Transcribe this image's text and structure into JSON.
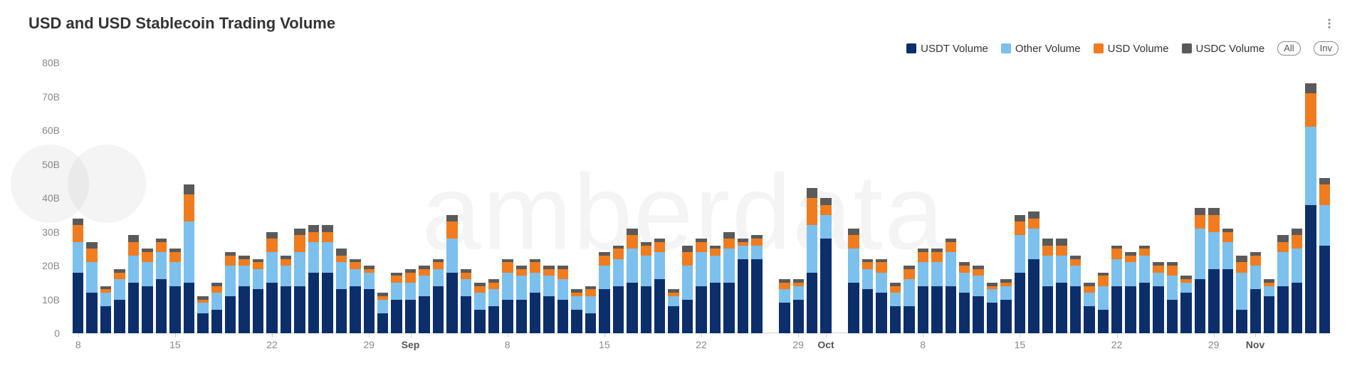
{
  "title": "USD and USD Stablecoin Trading Volume",
  "watermark_text": "amberdata",
  "chart": {
    "type": "stacked-bar",
    "background_color": "#ffffff",
    "grid_color": "#e8e8e8",
    "axis_text_color": "#888888",
    "title_color": "#333333",
    "title_fontsize": 22,
    "label_fontsize": 14,
    "y": {
      "min": 0,
      "max": 80,
      "unit": "B",
      "ticks": [
        0,
        10,
        20,
        30,
        40,
        50,
        60,
        70,
        80
      ]
    },
    "series": [
      {
        "key": "usdt",
        "label": "USDT Volume",
        "color": "#0c2f6b"
      },
      {
        "key": "other",
        "label": "Other Volume",
        "color": "#7cc0ee"
      },
      {
        "key": "usd",
        "label": "USD Volume",
        "color": "#f07c1f"
      },
      {
        "key": "usdc",
        "label": "USDC Volume",
        "color": "#5a5a5a"
      }
    ],
    "legend_buttons": [
      {
        "key": "all",
        "label": "All"
      },
      {
        "key": "inv",
        "label": "Inv"
      }
    ],
    "x_labels": [
      {
        "idx": 0,
        "label": "8",
        "bold": false
      },
      {
        "idx": 7,
        "label": "15",
        "bold": false
      },
      {
        "idx": 14,
        "label": "22",
        "bold": false
      },
      {
        "idx": 21,
        "label": "29",
        "bold": false
      },
      {
        "idx": 24,
        "label": "Sep",
        "bold": true
      },
      {
        "idx": 31,
        "label": "8",
        "bold": false
      },
      {
        "idx": 38,
        "label": "15",
        "bold": false
      },
      {
        "idx": 45,
        "label": "22",
        "bold": false
      },
      {
        "idx": 52,
        "label": "29",
        "bold": false
      },
      {
        "idx": 54,
        "label": "Oct",
        "bold": true
      },
      {
        "idx": 61,
        "label": "8",
        "bold": false
      },
      {
        "idx": 68,
        "label": "15",
        "bold": false
      },
      {
        "idx": 75,
        "label": "22",
        "bold": false
      },
      {
        "idx": 82,
        "label": "29",
        "bold": false
      },
      {
        "idx": 85,
        "label": "Nov",
        "bold": true
      }
    ],
    "data": [
      {
        "usdt": 18,
        "other": 9,
        "usd": 5,
        "usdc": 2
      },
      {
        "usdt": 12,
        "other": 9,
        "usd": 4,
        "usdc": 2
      },
      {
        "usdt": 8,
        "other": 4,
        "usd": 1,
        "usdc": 1
      },
      {
        "usdt": 10,
        "other": 6,
        "usd": 2,
        "usdc": 1
      },
      {
        "usdt": 15,
        "other": 8,
        "usd": 4,
        "usdc": 2
      },
      {
        "usdt": 14,
        "other": 7,
        "usd": 3,
        "usdc": 1
      },
      {
        "usdt": 16,
        "other": 8,
        "usd": 3,
        "usdc": 1
      },
      {
        "usdt": 14,
        "other": 7,
        "usd": 3,
        "usdc": 1
      },
      {
        "usdt": 15,
        "other": 18,
        "usd": 8,
        "usdc": 3
      },
      {
        "usdt": 6,
        "other": 3,
        "usd": 1,
        "usdc": 1
      },
      {
        "usdt": 7,
        "other": 5,
        "usd": 2,
        "usdc": 1
      },
      {
        "usdt": 11,
        "other": 9,
        "usd": 3,
        "usdc": 1
      },
      {
        "usdt": 14,
        "other": 6,
        "usd": 2,
        "usdc": 1
      },
      {
        "usdt": 13,
        "other": 6,
        "usd": 2,
        "usdc": 1
      },
      {
        "usdt": 15,
        "other": 9,
        "usd": 4,
        "usdc": 2
      },
      {
        "usdt": 14,
        "other": 6,
        "usd": 2,
        "usdc": 1
      },
      {
        "usdt": 14,
        "other": 10,
        "usd": 5,
        "usdc": 2
      },
      {
        "usdt": 18,
        "other": 9,
        "usd": 3,
        "usdc": 2
      },
      {
        "usdt": 18,
        "other": 9,
        "usd": 3,
        "usdc": 2
      },
      {
        "usdt": 13,
        "other": 8,
        "usd": 2,
        "usdc": 2
      },
      {
        "usdt": 14,
        "other": 5,
        "usd": 2,
        "usdc": 1
      },
      {
        "usdt": 13,
        "other": 5,
        "usd": 1,
        "usdc": 1
      },
      {
        "usdt": 6,
        "other": 4,
        "usd": 1,
        "usdc": 1
      },
      {
        "usdt": 10,
        "other": 5,
        "usd": 2,
        "usdc": 1
      },
      {
        "usdt": 10,
        "other": 5,
        "usd": 3,
        "usdc": 1
      },
      {
        "usdt": 11,
        "other": 6,
        "usd": 2,
        "usdc": 1
      },
      {
        "usdt": 14,
        "other": 5,
        "usd": 2,
        "usdc": 1
      },
      {
        "usdt": 18,
        "other": 10,
        "usd": 5,
        "usdc": 2
      },
      {
        "usdt": 11,
        "other": 5,
        "usd": 2,
        "usdc": 1
      },
      {
        "usdt": 7,
        "other": 5,
        "usd": 2,
        "usdc": 1
      },
      {
        "usdt": 8,
        "other": 5,
        "usd": 2,
        "usdc": 1
      },
      {
        "usdt": 10,
        "other": 8,
        "usd": 3,
        "usdc": 1
      },
      {
        "usdt": 10,
        "other": 7,
        "usd": 2,
        "usdc": 1
      },
      {
        "usdt": 12,
        "other": 6,
        "usd": 3,
        "usdc": 1
      },
      {
        "usdt": 11,
        "other": 6,
        "usd": 2,
        "usdc": 1
      },
      {
        "usdt": 10,
        "other": 6,
        "usd": 3,
        "usdc": 1
      },
      {
        "usdt": 7,
        "other": 4,
        "usd": 1,
        "usdc": 1
      },
      {
        "usdt": 6,
        "other": 5,
        "usd": 2,
        "usdc": 1
      },
      {
        "usdt": 13,
        "other": 7,
        "usd": 3,
        "usdc": 1
      },
      {
        "usdt": 14,
        "other": 8,
        "usd": 3,
        "usdc": 1
      },
      {
        "usdt": 15,
        "other": 10,
        "usd": 4,
        "usdc": 2
      },
      {
        "usdt": 14,
        "other": 9,
        "usd": 3,
        "usdc": 1
      },
      {
        "usdt": 16,
        "other": 8,
        "usd": 3,
        "usdc": 1
      },
      {
        "usdt": 8,
        "other": 3,
        "usd": 1,
        "usdc": 1
      },
      {
        "usdt": 10,
        "other": 10,
        "usd": 4,
        "usdc": 2
      },
      {
        "usdt": 14,
        "other": 10,
        "usd": 3,
        "usdc": 1
      },
      {
        "usdt": 15,
        "other": 8,
        "usd": 2,
        "usdc": 1
      },
      {
        "usdt": 15,
        "other": 10,
        "usd": 3,
        "usdc": 2
      },
      {
        "usdt": 22,
        "other": 4,
        "usd": 1,
        "usdc": 1
      },
      {
        "usdt": 22,
        "other": 4,
        "usd": 2,
        "usdc": 1
      },
      {
        "usdt": 0,
        "other": 0,
        "usd": 0,
        "usdc": 0
      },
      {
        "usdt": 9,
        "other": 4,
        "usd": 2,
        "usdc": 1
      },
      {
        "usdt": 10,
        "other": 4,
        "usd": 1,
        "usdc": 1
      },
      {
        "usdt": 18,
        "other": 14,
        "usd": 8,
        "usdc": 3
      },
      {
        "usdt": 28,
        "other": 7,
        "usd": 3,
        "usdc": 2
      },
      {
        "usdt": 0,
        "other": 0,
        "usd": 0,
        "usdc": 0
      },
      {
        "usdt": 15,
        "other": 10,
        "usd": 4,
        "usdc": 2
      },
      {
        "usdt": 13,
        "other": 6,
        "usd": 2,
        "usdc": 1
      },
      {
        "usdt": 12,
        "other": 6,
        "usd": 3,
        "usdc": 1
      },
      {
        "usdt": 8,
        "other": 4,
        "usd": 2,
        "usdc": 1
      },
      {
        "usdt": 8,
        "other": 8,
        "usd": 3,
        "usdc": 1
      },
      {
        "usdt": 14,
        "other": 7,
        "usd": 3,
        "usdc": 1
      },
      {
        "usdt": 14,
        "other": 7,
        "usd": 3,
        "usdc": 1
      },
      {
        "usdt": 14,
        "other": 10,
        "usd": 3,
        "usdc": 1
      },
      {
        "usdt": 12,
        "other": 6,
        "usd": 2,
        "usdc": 1
      },
      {
        "usdt": 11,
        "other": 6,
        "usd": 2,
        "usdc": 1
      },
      {
        "usdt": 9,
        "other": 4,
        "usd": 1,
        "usdc": 1
      },
      {
        "usdt": 10,
        "other": 4,
        "usd": 1,
        "usdc": 1
      },
      {
        "usdt": 18,
        "other": 11,
        "usd": 4,
        "usdc": 2
      },
      {
        "usdt": 22,
        "other": 9,
        "usd": 3,
        "usdc": 2
      },
      {
        "usdt": 14,
        "other": 9,
        "usd": 3,
        "usdc": 2
      },
      {
        "usdt": 15,
        "other": 8,
        "usd": 3,
        "usdc": 2
      },
      {
        "usdt": 14,
        "other": 6,
        "usd": 2,
        "usdc": 1
      },
      {
        "usdt": 8,
        "other": 4,
        "usd": 2,
        "usdc": 1
      },
      {
        "usdt": 7,
        "other": 7,
        "usd": 3,
        "usdc": 1
      },
      {
        "usdt": 14,
        "other": 8,
        "usd": 3,
        "usdc": 1
      },
      {
        "usdt": 14,
        "other": 7,
        "usd": 2,
        "usdc": 1
      },
      {
        "usdt": 15,
        "other": 8,
        "usd": 2,
        "usdc": 1
      },
      {
        "usdt": 14,
        "other": 4,
        "usd": 2,
        "usdc": 1
      },
      {
        "usdt": 10,
        "other": 7,
        "usd": 3,
        "usdc": 1
      },
      {
        "usdt": 12,
        "other": 3,
        "usd": 1,
        "usdc": 1
      },
      {
        "usdt": 16,
        "other": 15,
        "usd": 4,
        "usdc": 2
      },
      {
        "usdt": 19,
        "other": 11,
        "usd": 5,
        "usdc": 2
      },
      {
        "usdt": 19,
        "other": 8,
        "usd": 3,
        "usdc": 1
      },
      {
        "usdt": 7,
        "other": 11,
        "usd": 3,
        "usdc": 2
      },
      {
        "usdt": 13,
        "other": 7,
        "usd": 3,
        "usdc": 1
      },
      {
        "usdt": 11,
        "other": 3,
        "usd": 1,
        "usdc": 1
      },
      {
        "usdt": 14,
        "other": 10,
        "usd": 3,
        "usdc": 2
      },
      {
        "usdt": 15,
        "other": 10,
        "usd": 4,
        "usdc": 2
      },
      {
        "usdt": 38,
        "other": 23,
        "usd": 10,
        "usdc": 3
      },
      {
        "usdt": 26,
        "other": 12,
        "usd": 6,
        "usdc": 2
      }
    ]
  }
}
